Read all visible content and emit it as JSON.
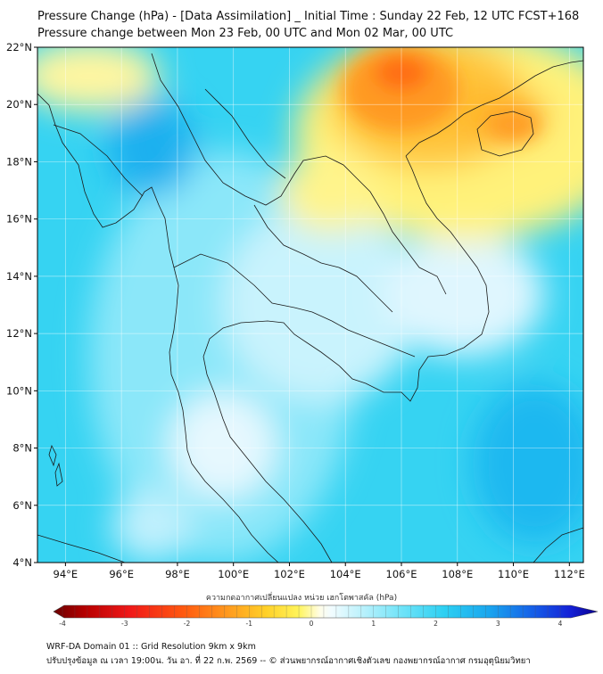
{
  "header": {
    "title_line1": "Pressure Change (hPa) - [Data Assimilation] _ Initial Time : Sunday 22 Feb, 12 UTC FCST+168",
    "title_line2": "Pressure change between Mon 23 Feb, 00 UTC and Mon 02 Mar, 00 UTC"
  },
  "map": {
    "lat_ticks": [
      "22°N",
      "20°N",
      "18°N",
      "16°N",
      "14°N",
      "12°N",
      "10°N",
      "8°N",
      "6°N",
      "4°N"
    ],
    "lon_ticks": [
      "94°E",
      "96°E",
      "98°E",
      "100°E",
      "102°E",
      "104°E",
      "106°E",
      "108°E",
      "110°E",
      "112°E"
    ],
    "lat_range": [
      4,
      22
    ],
    "lon_range": [
      93,
      112.5
    ]
  },
  "colorbar": {
    "title": "ความกดอากาศเปลี่ยนแปลง หน่วย เฮกโตพาสคัล (hPa)",
    "labels": [
      "-4",
      "-3",
      "-2",
      "-1",
      "0",
      "1",
      "2",
      "3",
      "4"
    ],
    "range": [
      -4,
      4
    ]
  },
  "colors": {
    "ocean_cyan": "#36d3f2",
    "mid_cyan": "#7fe6fa",
    "light_cyan": "#c8f4fd",
    "near_zero": "#f3fbff",
    "yellow": "#fff04a",
    "orange": "#ffae1e",
    "deep_orange": "#ff6a12",
    "blue": "#1fa0ec"
  },
  "footer": {
    "line1": "WRF-DA Domain 01 :: Grid Resolution 9km x 9km",
    "line2": "ปรับปรุงข้อมูล ณ เวลา 19:00น. วัน อา. ที่ 22 ก.พ. 2569 -- © ส่วนพยากรณ์อากาศเชิงตัวเลข กองพยากรณ์อากาศ กรมอุตุนิยมวิทยา"
  }
}
